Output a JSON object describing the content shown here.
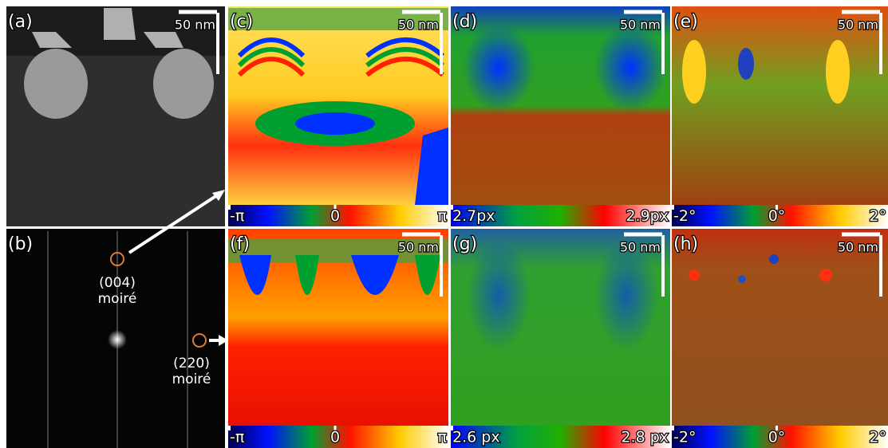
{
  "panels": [
    {
      "label": "(a)",
      "scale_bar": "50 nm"
    },
    {
      "label": "(b)",
      "annotations": [
        {
          "lines": [
            "(004)",
            "moiré"
          ]
        },
        {
          "lines": [
            "(220)",
            "moiré"
          ]
        }
      ]
    },
    {
      "label": "(c)",
      "scale_bar": "50 nm",
      "colorbar": [
        "-π",
        "0",
        "π"
      ]
    },
    {
      "label": "(d)",
      "scale_bar": "50 nm",
      "colorbar": [
        "2.7px",
        "2.9px"
      ]
    },
    {
      "label": "(e)",
      "scale_bar": "50 nm",
      "colorbar": [
        "-2°",
        "0°",
        "2°"
      ]
    },
    {
      "label": "(f)",
      "scale_bar": "50 nm",
      "colorbar": [
        "-π",
        "0",
        "π"
      ]
    },
    {
      "label": "(g)",
      "scale_bar": "50 nm",
      "colorbar": [
        "2.6 px",
        "2.8 px"
      ]
    },
    {
      "label": "(h)",
      "scale_bar": "50 nm",
      "colorbar": [
        "-2°",
        "0°",
        "2°"
      ]
    }
  ]
}
